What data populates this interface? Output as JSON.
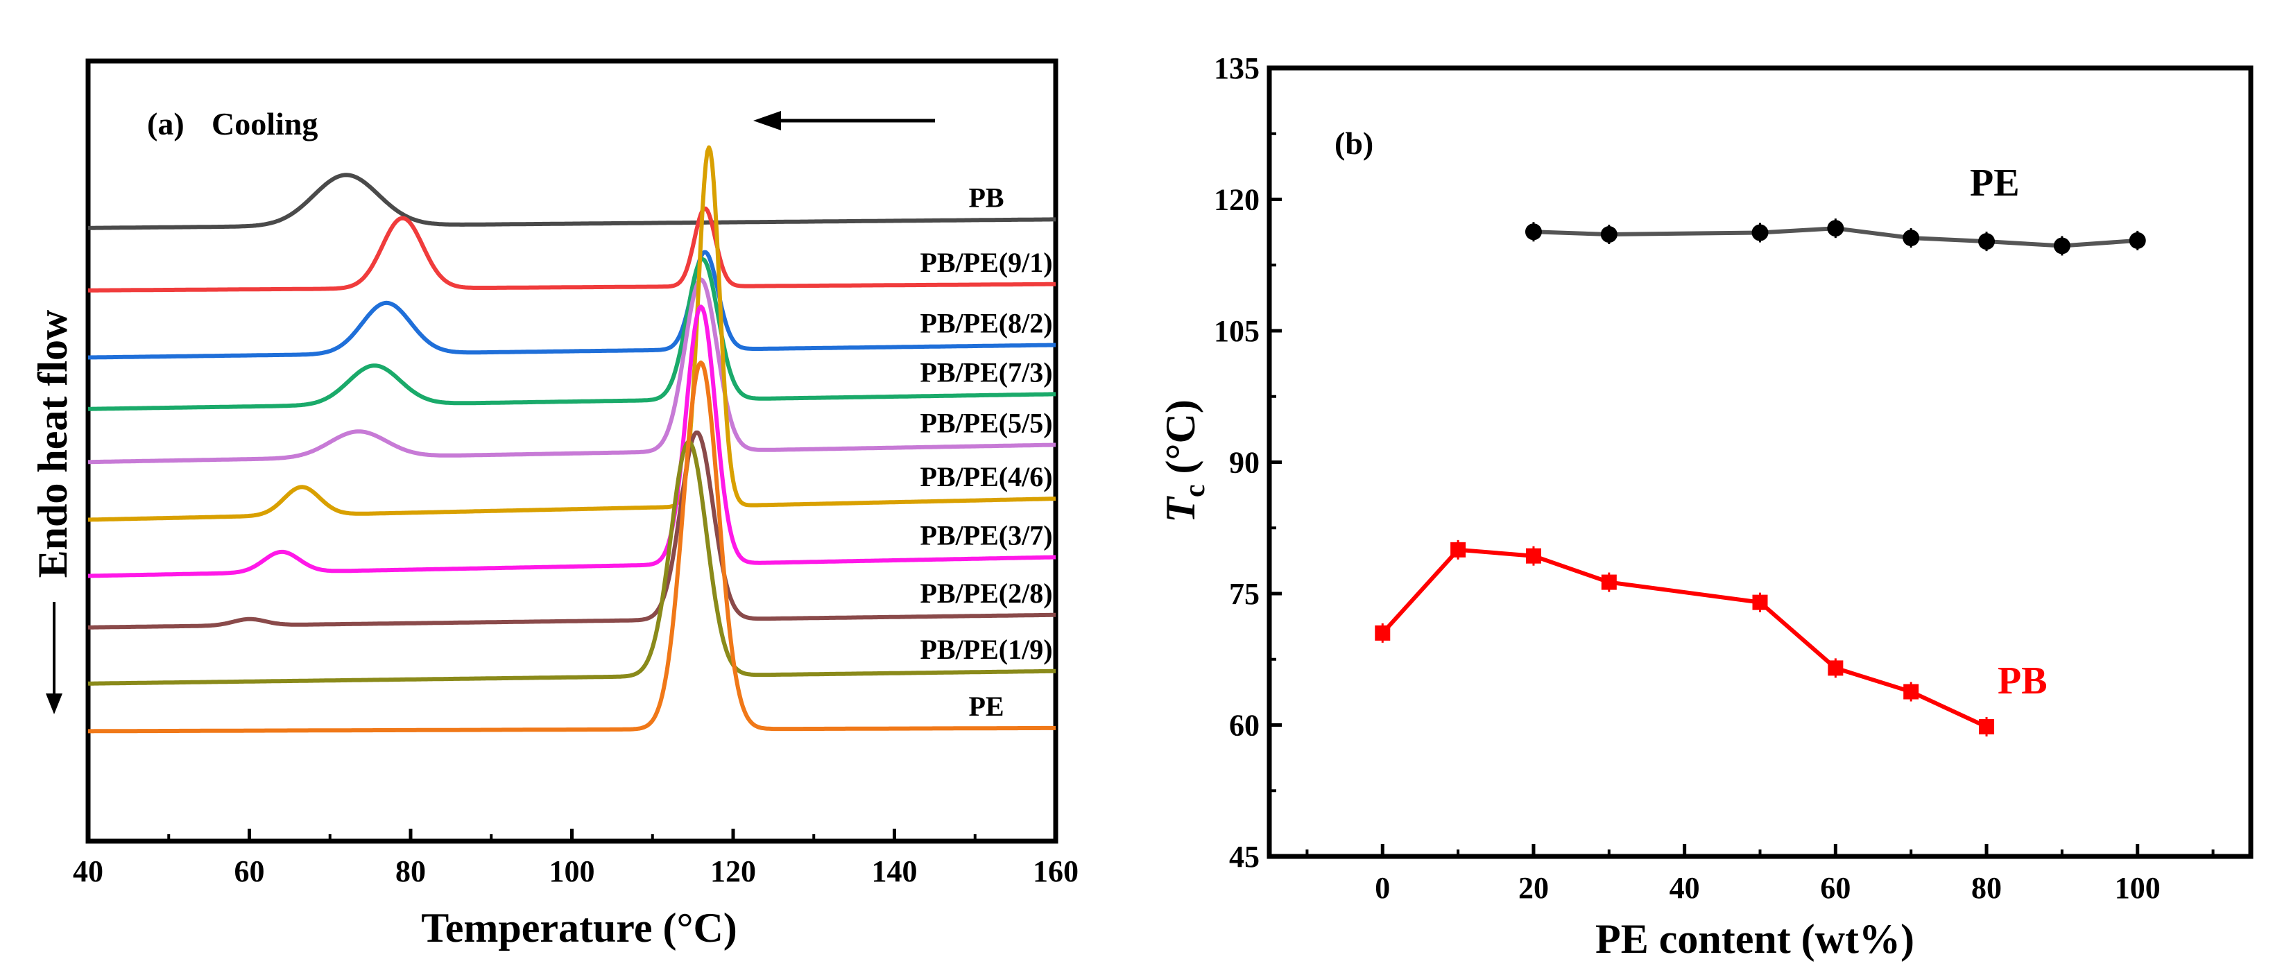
{
  "chart_data": [
    {
      "panel": "(a)",
      "type": "line",
      "title": "Cooling",
      "xlabel": "Temperature (°C)",
      "ylabel": "Endo heat flow",
      "xlim": [
        40,
        160
      ],
      "xticks": [
        40,
        60,
        80,
        100,
        120,
        140,
        160
      ],
      "yticks": false,
      "note": "Curves offset vertically; values in arbitrary units (0 = bottom of frame, 100 = top)",
      "series": [
        {
          "name": "PB",
          "label": "PB",
          "color": "#4a4a4a",
          "baseline_left": 78.6,
          "baseline_right": 79.7,
          "peaks": [
            {
              "x": 72,
              "height": 6.5,
              "width": 4.0
            }
          ]
        },
        {
          "name": "PB/PE(9/1)",
          "label": "PB/PE(9/1)",
          "color": "#f03c3c",
          "baseline_left": 70.6,
          "baseline_right": 71.4,
          "peaks": [
            {
              "x": 79,
              "height": 9.0,
              "width": 2.5
            },
            {
              "x": 116.5,
              "height": 10.0,
              "width": 1.3
            }
          ]
        },
        {
          "name": "PB/PE(8/2)",
          "label": "PB/PE(8/2)",
          "color": "#1f6fd9",
          "baseline_left": 62.0,
          "baseline_right": 63.6,
          "peaks": [
            {
              "x": 77,
              "height": 6.5,
              "width": 3.0
            },
            {
              "x": 116.5,
              "height": 12.5,
              "width": 1.6
            }
          ]
        },
        {
          "name": "PB/PE(7/3)",
          "label": "PB/PE(7/3)",
          "color": "#1aaa6a",
          "baseline_left": 55.4,
          "baseline_right": 57.3,
          "peaks": [
            {
              "x": 75.5,
              "height": 5.0,
              "width": 3.2
            },
            {
              "x": 116.2,
              "height": 18.0,
              "width": 1.9
            }
          ]
        },
        {
          "name": "PB/PE(5/5)",
          "label": "PB/PE(5/5)",
          "color": "#c77ad6",
          "baseline_left": 48.6,
          "baseline_right": 50.8,
          "peaks": [
            {
              "x": 73.5,
              "height": 3.3,
              "width": 3.5
            },
            {
              "x": 116,
              "height": 22.0,
              "width": 2.0
            }
          ]
        },
        {
          "name": "PB/PE(4/6)",
          "label": "PB/PE(4/6)",
          "color": "#d9a000",
          "baseline_left": 41.2,
          "baseline_right": 43.9,
          "peaks": [
            {
              "x": 66.5,
              "height": 3.6,
              "width": 2.2
            },
            {
              "x": 117,
              "height": 46.0,
              "width": 1.3
            }
          ]
        },
        {
          "name": "PB/PE(3/7)",
          "label": "PB/PE(3/7)",
          "color": "#ff18e8",
          "baseline_left": 34.0,
          "baseline_right": 36.4,
          "peaks": [
            {
              "x": 64,
              "height": 2.6,
              "width": 2.2
            },
            {
              "x": 116,
              "height": 33.0,
              "width": 1.8
            }
          ]
        },
        {
          "name": "PB/PE(2/8)",
          "label": "PB/PE(2/8)",
          "color": "#8a4a4a",
          "baseline_left": 27.4,
          "baseline_right": 29.0,
          "peaks": [
            {
              "x": 60,
              "height": 0.8,
              "width": 2.0
            },
            {
              "x": 115.5,
              "height": 24.0,
              "width": 2.0
            }
          ]
        },
        {
          "name": "PB/PE(1/9)",
          "label": "PB/PE(1/9)",
          "color": "#8a8a1a",
          "baseline_left": 20.2,
          "baseline_right": 21.8,
          "peaks": [
            {
              "x": 114.5,
              "height": 30.0,
              "width": 2.2
            }
          ]
        },
        {
          "name": "PE",
          "label": "PE",
          "color": "#f07818",
          "baseline_left": 14.1,
          "baseline_right": 14.5,
          "peaks": [
            {
              "x": 116,
              "height": 47.0,
              "width": 2.2
            }
          ]
        }
      ]
    },
    {
      "panel": "(b)",
      "type": "line",
      "xlabel": "PE content (wt%)",
      "ylabel": "T",
      "ylabel_sub": "c",
      "ylabel_unit": " (°C)",
      "xlim": [
        -15,
        115
      ],
      "ylim": [
        45,
        135
      ],
      "xticks": [
        0,
        20,
        40,
        60,
        80,
        100
      ],
      "yticks": [
        45,
        60,
        75,
        90,
        105,
        120,
        135
      ],
      "series": [
        {
          "name": "PE",
          "label": "PE",
          "color": "#000000",
          "line_color": "#555555",
          "marker": "circle",
          "x": [
            20,
            30,
            50,
            60,
            70,
            80,
            90,
            100
          ],
          "y": [
            116.3,
            116.0,
            116.2,
            116.7,
            115.6,
            115.2,
            114.7,
            115.3
          ]
        },
        {
          "name": "PB",
          "label": "PB",
          "color": "#ff0000",
          "line_color": "#ff0000",
          "marker": "square",
          "x": [
            0,
            10,
            20,
            30,
            50,
            60,
            70,
            80
          ],
          "y": [
            70.5,
            80.0,
            79.3,
            76.3,
            74.0,
            66.5,
            63.8,
            59.8
          ]
        }
      ]
    }
  ]
}
